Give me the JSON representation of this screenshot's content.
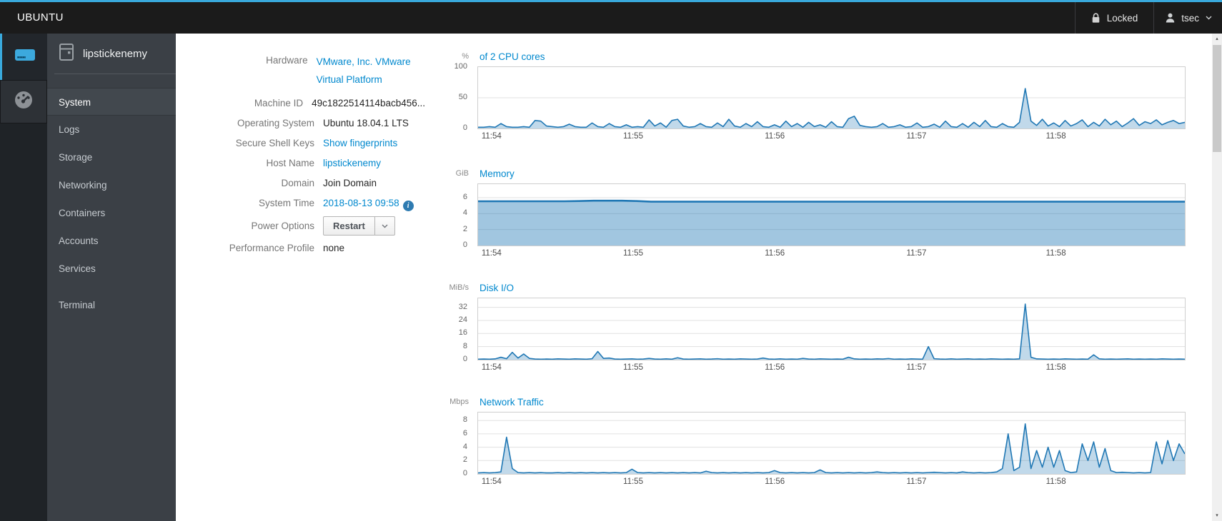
{
  "topbar": {
    "brand": "UBUNTU",
    "locked_label": "Locked",
    "user": "tsec"
  },
  "sidebar": {
    "host": "lipstickenemy",
    "items": [
      {
        "label": "System",
        "active": true
      },
      {
        "label": "Logs"
      },
      {
        "label": "Storage"
      },
      {
        "label": "Networking"
      },
      {
        "label": "Containers"
      },
      {
        "label": "Accounts"
      },
      {
        "label": "Services"
      },
      {
        "label": "Terminal"
      }
    ]
  },
  "system": {
    "rows": [
      {
        "label": "Hardware",
        "value": "VMware, Inc. VMware Virtual Platform",
        "kind": "link"
      },
      {
        "label": "Machine ID",
        "value": "49c1822514114bacb456...",
        "kind": "text"
      },
      {
        "label": "Operating System",
        "value": "Ubuntu 18.04.1 LTS",
        "kind": "text"
      },
      {
        "label": "Secure Shell Keys",
        "value": "Show fingerprints",
        "kind": "link"
      },
      {
        "label": "Host Name",
        "value": "lipstickenemy",
        "kind": "link"
      },
      {
        "label": "Domain",
        "value": "Join Domain",
        "kind": "text"
      },
      {
        "label": "System Time",
        "value": "2018-08-13 09:58",
        "kind": "link",
        "info_icon": true
      },
      {
        "label": "Power Options",
        "value": "Restart",
        "kind": "button"
      },
      {
        "label": "Performance Profile",
        "value": "none",
        "kind": "text"
      }
    ]
  },
  "chart_data": [
    {
      "type": "area",
      "title": "of 2 CPU cores",
      "unit": "%",
      "ymax": 100,
      "yticks": [
        100,
        50,
        0
      ],
      "x_labels": [
        "11:54",
        "11:55",
        "11:56",
        "11:57",
        "11:58"
      ],
      "x_positions": [
        0.02,
        0.22,
        0.42,
        0.62,
        0.817
      ],
      "line_color": "#1f77b4",
      "fill_color": "rgba(31,119,180,0.28)",
      "line_width": 1.6,
      "values": [
        2,
        2,
        3,
        2,
        8,
        3,
        2,
        2,
        3,
        2,
        13,
        12,
        4,
        3,
        2,
        3,
        7,
        3,
        2,
        2,
        9,
        3,
        2,
        8,
        3,
        2,
        6,
        2,
        3,
        2,
        14,
        4,
        9,
        2,
        13,
        15,
        4,
        2,
        3,
        8,
        3,
        2,
        9,
        3,
        15,
        4,
        2,
        8,
        3,
        11,
        3,
        2,
        6,
        2,
        12,
        3,
        8,
        2,
        10,
        3,
        6,
        2,
        11,
        3,
        2,
        16,
        20,
        5,
        3,
        2,
        3,
        8,
        2,
        3,
        6,
        2,
        3,
        9,
        2,
        3,
        7,
        2,
        12,
        3,
        2,
        8,
        2,
        10,
        3,
        13,
        3,
        2,
        8,
        3,
        2,
        10,
        65,
        12,
        5,
        15,
        4,
        9,
        3,
        13,
        4,
        8,
        14,
        3,
        10,
        4,
        15,
        6,
        12,
        3,
        9,
        16,
        5,
        11,
        8,
        14,
        6,
        10,
        13,
        8,
        10
      ]
    },
    {
      "type": "area",
      "title": "Memory",
      "unit": "GiB",
      "ymax": 7.7,
      "yticks": [
        6,
        4,
        2,
        0
      ],
      "x_labels": [
        "11:54",
        "11:55",
        "11:56",
        "11:57",
        "11:58"
      ],
      "x_positions": [
        0.02,
        0.22,
        0.42,
        0.62,
        0.817
      ],
      "line_color": "#1f77b4",
      "fill_color": "rgba(31,119,180,0.42)",
      "line_width": 2.6,
      "values": [
        5.55,
        5.55,
        5.55,
        5.55,
        5.55,
        5.55,
        5.55,
        5.58,
        5.62,
        5.62,
        5.62,
        5.58,
        5.5,
        5.5,
        5.5,
        5.5,
        5.5,
        5.5,
        5.5,
        5.5,
        5.5,
        5.5,
        5.5,
        5.5,
        5.5,
        5.5,
        5.5,
        5.5,
        5.5,
        5.5,
        5.5,
        5.5,
        5.5,
        5.5,
        5.5,
        5.5,
        5.5,
        5.5,
        5.5,
        5.5,
        5.5,
        5.5,
        5.5,
        5.5,
        5.5,
        5.5,
        5.5,
        5.5,
        5.5,
        5.5
      ]
    },
    {
      "type": "area",
      "title": "Disk I/O",
      "unit": "MiB/s",
      "ymax": 37.5,
      "yticks": [
        32,
        24,
        16,
        8,
        0
      ],
      "x_labels": [
        "11:54",
        "11:55",
        "11:56",
        "11:57",
        "11:58"
      ],
      "x_positions": [
        0.02,
        0.22,
        0.42,
        0.62,
        0.817
      ],
      "line_color": "#1f77b4",
      "fill_color": "rgba(31,119,180,0.28)",
      "line_width": 1.6,
      "values": [
        0.3,
        0.4,
        0.3,
        0.5,
        1.5,
        0.6,
        4.5,
        1,
        3.5,
        0.8,
        0.4,
        0.3,
        0.4,
        0.3,
        0.5,
        0.4,
        0.3,
        0.5,
        0.4,
        0.3,
        0.6,
        5,
        0.8,
        1,
        0.4,
        0.3,
        0.4,
        0.5,
        0.3,
        0.4,
        0.8,
        0.4,
        0.3,
        0.5,
        0.3,
        1.2,
        0.4,
        0.3,
        0.4,
        0.5,
        0.3,
        0.4,
        0.6,
        0.3,
        0.4,
        0.3,
        0.5,
        0.4,
        0.3,
        0.4,
        1,
        0.4,
        0.3,
        0.5,
        0.3,
        0.4,
        0.3,
        0.8,
        0.4,
        0.3,
        0.5,
        0.4,
        0.3,
        0.4,
        0.3,
        1.5,
        0.5,
        0.3,
        0.4,
        0.3,
        0.5,
        0.4,
        0.7,
        0.3,
        0.4,
        0.3,
        0.5,
        0.4,
        0.3,
        8,
        0.6,
        0.4,
        0.3,
        0.5,
        0.3,
        0.4,
        0.5,
        0.3,
        0.4,
        0.3,
        0.5,
        0.4,
        0.3,
        0.4,
        0.3,
        0.5,
        34,
        1.5,
        0.5,
        0.4,
        0.3,
        0.4,
        0.3,
        0.5,
        0.4,
        0.3,
        0.4,
        0.3,
        3,
        0.5,
        0.3,
        0.4,
        0.3,
        0.4,
        0.5,
        0.3,
        0.4,
        0.3,
        0.4,
        0.3,
        0.5,
        0.4,
        0.3,
        0.4,
        0.3
      ]
    },
    {
      "type": "area",
      "title": "Network Traffic",
      "unit": "Mbps",
      "ymax": 9.2,
      "yticks": [
        8,
        6,
        4,
        2,
        0
      ],
      "x_labels": [
        "11:54",
        "11:55",
        "11:56",
        "11:57",
        "11:58"
      ],
      "x_positions": [
        0.02,
        0.22,
        0.42,
        0.62,
        0.817
      ],
      "line_color": "#1f77b4",
      "fill_color": "rgba(31,119,180,0.28)",
      "line_width": 1.6,
      "values": [
        0.15,
        0.2,
        0.15,
        0.2,
        0.3,
        5.5,
        0.8,
        0.2,
        0.15,
        0.2,
        0.15,
        0.2,
        0.15,
        0.15,
        0.2,
        0.15,
        0.2,
        0.15,
        0.2,
        0.15,
        0.2,
        0.15,
        0.2,
        0.15,
        0.2,
        0.15,
        0.2,
        0.7,
        0.2,
        0.15,
        0.2,
        0.15,
        0.2,
        0.15,
        0.2,
        0.15,
        0.2,
        0.15,
        0.2,
        0.15,
        0.4,
        0.2,
        0.15,
        0.2,
        0.15,
        0.2,
        0.15,
        0.2,
        0.15,
        0.2,
        0.15,
        0.2,
        0.5,
        0.2,
        0.15,
        0.2,
        0.15,
        0.2,
        0.15,
        0.2,
        0.6,
        0.2,
        0.15,
        0.2,
        0.15,
        0.2,
        0.15,
        0.2,
        0.15,
        0.2,
        0.3,
        0.2,
        0.15,
        0.2,
        0.15,
        0.2,
        0.15,
        0.2,
        0.15,
        0.2,
        0.25,
        0.2,
        0.15,
        0.2,
        0.15,
        0.3,
        0.2,
        0.15,
        0.2,
        0.15,
        0.2,
        0.3,
        0.8,
        6,
        0.5,
        1,
        7.5,
        0.8,
        3.5,
        1,
        4,
        1,
        3.5,
        0.5,
        0.2,
        0.3,
        4.5,
        2,
        4.8,
        1,
        3.8,
        0.5,
        0.2,
        0.25,
        0.2,
        0.15,
        0.2,
        0.15,
        0.2,
        4.8,
        1.5,
        5,
        2,
        4.5,
        3
      ]
    }
  ],
  "icons": {
    "lock": "padlock-glyph",
    "user": "person-silhouette",
    "caret_down": "chevron-down",
    "info": "i-in-blue-circle",
    "machine": "blue-server-drive",
    "dashboard": "gauge-speedometer",
    "host": "server-outline",
    "scroll_up": "▴",
    "scroll_down": "▾"
  },
  "colors": {
    "accent_blue": "#39a9dc",
    "link_blue": "#0088ce",
    "chart_line": "#1f77b4",
    "chart_fill": "rgba(31,119,180,0.28)",
    "memory_fill": "rgba(31,119,180,0.42)",
    "topbar_bg": "#1b1b1b",
    "sidebar_bg": "#3b4046",
    "sidebar_strip_bg": "#1f2327"
  }
}
